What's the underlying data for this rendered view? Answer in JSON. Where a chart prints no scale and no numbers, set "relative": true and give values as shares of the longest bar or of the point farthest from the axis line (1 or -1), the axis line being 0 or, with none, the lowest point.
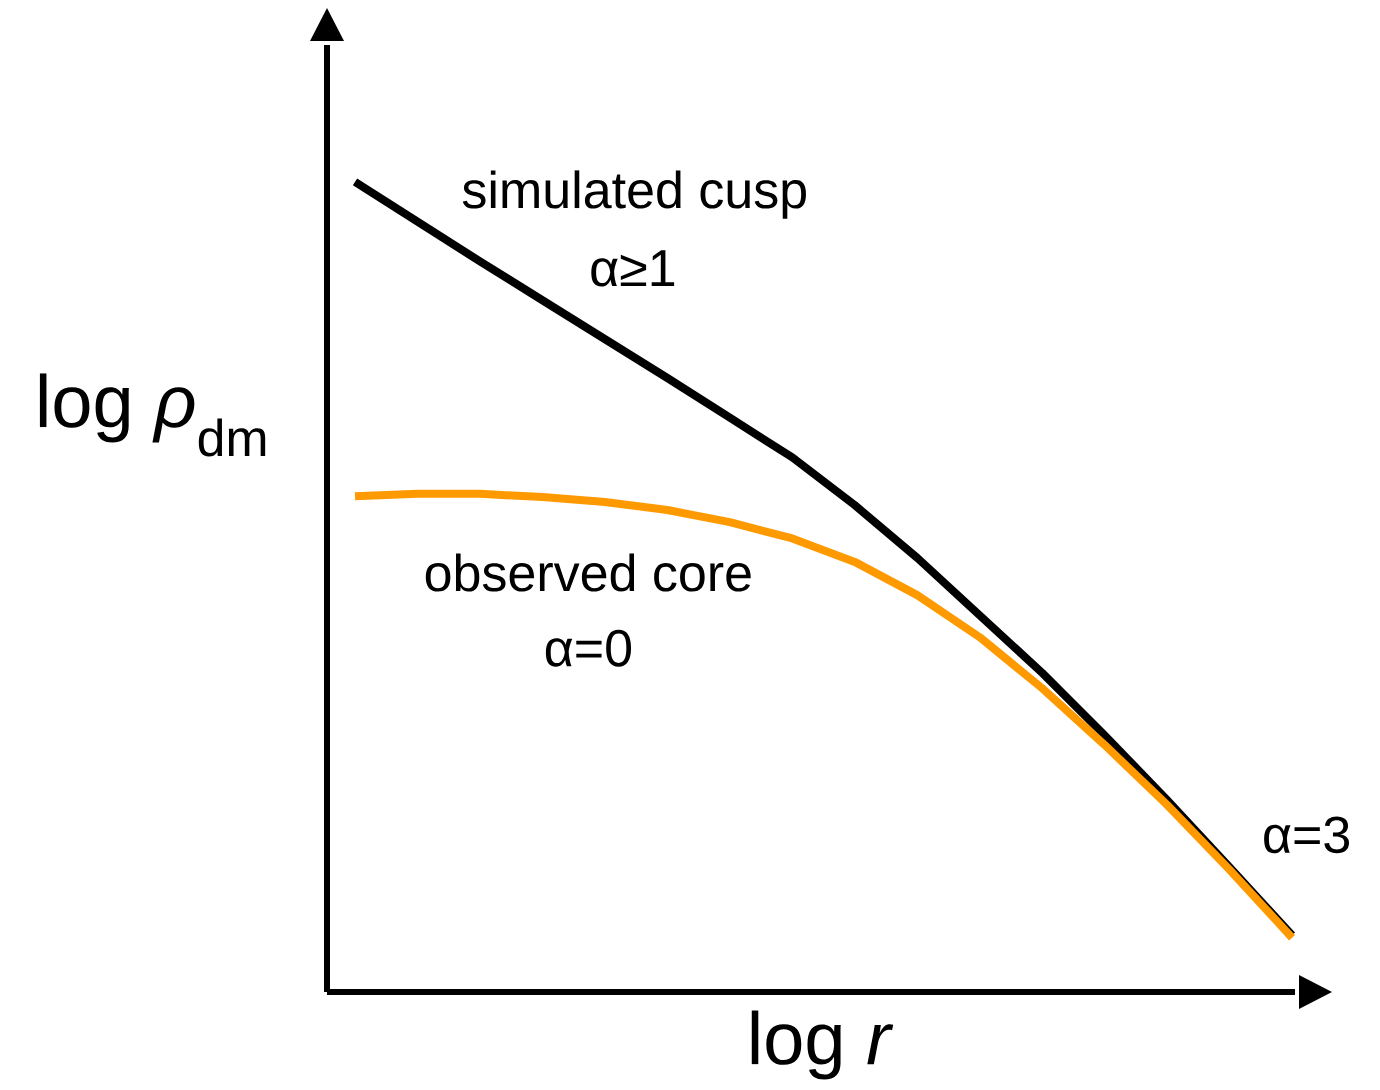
{
  "chart_data": {
    "type": "line",
    "relative": true,
    "xlabel": "log *r*",
    "ylabel": "log *ρ*$_{dm}$",
    "annotations": [
      "simulated cusp",
      "α≥1",
      "observed core",
      "α=0",
      "α=3"
    ],
    "categories": [
      null,
      null,
      null,
      null,
      null,
      null,
      null,
      null,
      null,
      null,
      null,
      null,
      null,
      null,
      null,
      null
    ],
    "series": [
      {
        "color": "#000000",
        "values": [
          1,
          0.951,
          0.902,
          0.854,
          0.806,
          0.758,
          0.709,
          0.66,
          0.601,
          0.536,
          0.465,
          0.394,
          0.317,
          0.237,
          0.154,
          0.07
        ]
      },
      {
        "color": "#ff9900",
        "values": [
          0.612,
          0.615,
          0.615,
          0.611,
          0.605,
          0.595,
          0.58,
          0.56,
          0.531,
          0.49,
          0.438,
          0.375,
          0.305,
          0.231,
          0.151,
          0.067
        ]
      }
    ]
  }
}
